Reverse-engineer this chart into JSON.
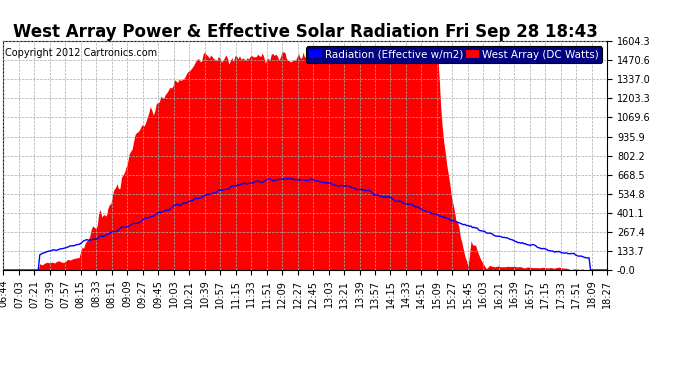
{
  "title": "West Array Power & Effective Solar Radiation Fri Sep 28 18:43",
  "copyright": "Copyright 2012 Cartronics.com",
  "legend_labels": [
    "Radiation (Effective w/m2)",
    "West Array (DC Watts)"
  ],
  "bg_color": "#ffffff",
  "plot_bg_color": "#ffffff",
  "grid_color": "#aaaaaa",
  "y_max": 1604.3,
  "y_min": 0.0,
  "y_ticks": [
    0.0,
    133.7,
    267.4,
    401.1,
    534.8,
    668.5,
    802.2,
    935.9,
    1069.6,
    1203.3,
    1337.0,
    1470.6,
    1604.3
  ],
  "y_tick_labels": [
    "-0.0",
    "133.7",
    "267.4",
    "401.1",
    "534.8",
    "668.5",
    "802.2",
    "935.9",
    "1069.6",
    "1203.3",
    "1337.0",
    "1470.6",
    "1604.3"
  ],
  "x_labels": [
    "06:44",
    "07:03",
    "07:21",
    "07:39",
    "07:57",
    "08:15",
    "08:33",
    "08:51",
    "09:09",
    "09:27",
    "09:45",
    "10:03",
    "10:21",
    "10:39",
    "10:57",
    "11:15",
    "11:33",
    "11:51",
    "12:09",
    "12:27",
    "12:45",
    "13:03",
    "13:21",
    "13:39",
    "13:57",
    "14:15",
    "14:33",
    "14:51",
    "15:09",
    "15:27",
    "15:45",
    "16:03",
    "16:21",
    "16:39",
    "16:57",
    "17:15",
    "17:33",
    "17:51",
    "18:09",
    "18:27"
  ],
  "red_fill_color": "#ff0000",
  "blue_line_color": "#0000ff",
  "title_fontsize": 12,
  "tick_fontsize": 7,
  "copyright_fontsize": 7,
  "legend_fontsize": 7.5
}
